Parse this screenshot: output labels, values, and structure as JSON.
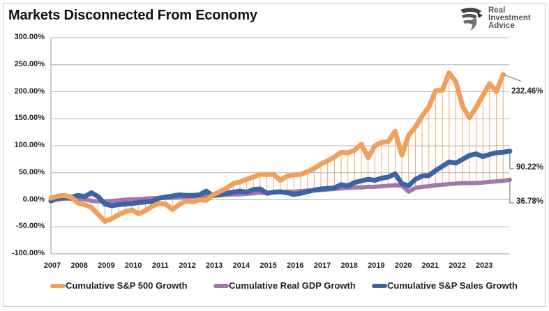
{
  "chart_data": {
    "type": "line",
    "title": "Markets Disconnected From Economy",
    "xlabel": "",
    "ylabel": "",
    "ylim": [
      -100,
      300
    ],
    "y_ticks": [
      "300.00%",
      "250.00%",
      "200.00%",
      "150.00%",
      "100.00%",
      "50.00%",
      "0.00%",
      "-50.00%",
      "-100.00%"
    ],
    "y_tick_values": [
      300,
      250,
      200,
      150,
      100,
      50,
      0,
      -50,
      -100
    ],
    "x_ticks": [
      "2007",
      "2008",
      "2009",
      "2010",
      "2011",
      "2012",
      "2013",
      "2014",
      "2015",
      "2016",
      "2017",
      "2018",
      "2019",
      "2020",
      "2021",
      "2022",
      "2023"
    ],
    "x_start": 2007,
    "x_step": 0.25,
    "grid": true,
    "legend_position": "bottom",
    "drop_lines": true,
    "series": [
      {
        "name": "Cumulative S&P 500 Growth",
        "color": "#f0a05a",
        "end_label": "232.46%",
        "values": [
          3,
          7,
          8,
          5,
          -6,
          -9,
          -14,
          -27,
          -40,
          -35,
          -28,
          -22,
          -19,
          -26,
          -20,
          -12,
          -7,
          -8,
          -18,
          -9,
          -2,
          -4,
          0,
          -1,
          9,
          15,
          21,
          30,
          33,
          38,
          42,
          47,
          47,
          47,
          36,
          44,
          46,
          47,
          52,
          58,
          66,
          72,
          79,
          88,
          87,
          92,
          103,
          78,
          100,
          106,
          108,
          127,
          83,
          119,
          135,
          155,
          172,
          202,
          203,
          235,
          218,
          173,
          152,
          171,
          193,
          215,
          200,
          232
        ]
      },
      {
        "name": "Cumulative Real GDP Growth",
        "color": "#a276a8",
        "end_label": "36.78%",
        "values": [
          0,
          1,
          2,
          2,
          2,
          1,
          -2,
          -3,
          -3,
          -2,
          -1,
          0,
          1,
          1,
          2,
          3,
          3,
          4,
          4,
          5,
          5,
          6,
          6,
          7,
          7,
          8,
          9,
          10,
          10,
          11,
          12,
          13,
          13,
          14,
          14,
          15,
          15,
          16,
          17,
          17,
          18,
          19,
          20,
          21,
          22,
          23,
          23,
          24,
          24,
          25,
          26,
          27,
          26,
          15,
          22,
          24,
          25,
          27,
          28,
          29,
          30,
          31,
          31,
          31,
          32,
          33,
          34,
          35,
          37
        ]
      },
      {
        "name": "Cumulative S&P Sales Growth",
        "color": "#3c64a5",
        "end_label": "90.22%",
        "values": [
          -2,
          2,
          4,
          5,
          8,
          6,
          13,
          6,
          -8,
          -11,
          -9,
          -8,
          -7,
          -5,
          -4,
          -3,
          3,
          5,
          7,
          9,
          8,
          8,
          9,
          16,
          8,
          10,
          12,
          14,
          16,
          14,
          19,
          20,
          12,
          14,
          15,
          13,
          10,
          12,
          15,
          18,
          20,
          21,
          22,
          28,
          26,
          32,
          35,
          38,
          36,
          40,
          42,
          48,
          30,
          26,
          38,
          44,
          45,
          54,
          62,
          70,
          68,
          75,
          82,
          85,
          80,
          84,
          87,
          88,
          90
        ]
      }
    ]
  },
  "branding": {
    "line1": "Real",
    "line2": "Investment",
    "line3": "Advice"
  }
}
